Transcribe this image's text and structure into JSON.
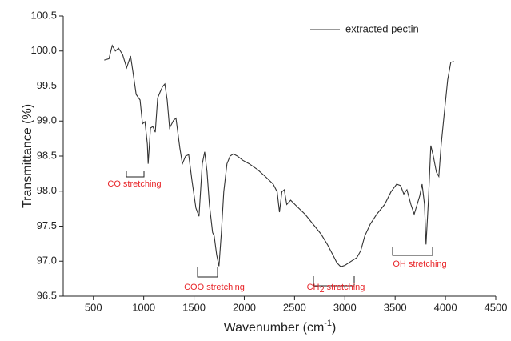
{
  "chart_data": {
    "type": "line",
    "x_label": {
      "text": "Wavenumber (cm",
      "sup": "-1",
      "end": ")"
    },
    "y_label": "Transmittance (%)",
    "xlim": [
      200,
      4500
    ],
    "ylim": [
      96.5,
      100.5
    ],
    "xticks": [
      500,
      1000,
      1500,
      2000,
      2500,
      3000,
      3500,
      4000,
      4500
    ],
    "yticks": [
      96.5,
      {
        "value": 97,
        "label": "97.0"
      },
      97.5,
      {
        "value": 98,
        "label": "98.0"
      },
      98.5,
      {
        "value": 99,
        "label": "99.0"
      },
      99.5,
      {
        "value": 100,
        "label": "100.0"
      },
      100.5
    ],
    "legend": "top-right",
    "x": [
      608,
      655,
      687,
      718,
      750,
      790,
      830,
      869,
      893,
      925,
      964,
      988,
      1012,
      1036,
      1044,
      1067,
      1091,
      1115,
      1139,
      1162,
      1186,
      1210,
      1233,
      1257,
      1297,
      1321,
      1360,
      1384,
      1416,
      1447,
      1479,
      1519,
      1550,
      1582,
      1606,
      1630,
      1653,
      1685,
      1701,
      1725,
      1748,
      1772,
      1796,
      1828,
      1859,
      1891,
      1931,
      1986,
      2049,
      2129,
      2208,
      2287,
      2327,
      2350,
      2374,
      2398,
      2422,
      2461,
      2525,
      2604,
      2683,
      2762,
      2826,
      2881,
      2920,
      2960,
      3000,
      3063,
      3119,
      3158,
      3198,
      3253,
      3317,
      3396,
      3459,
      3515,
      3554,
      3586,
      3617,
      3657,
      3689,
      3712,
      3744,
      3768,
      3792,
      3807,
      3831,
      3855,
      3879,
      3910,
      3934,
      3958,
      3990,
      4022,
      4053,
      4085
    ],
    "series": [
      {
        "name": "extracted pectin",
        "color": "#333333",
        "values": [
          99.87,
          99.89,
          100.08,
          100.0,
          100.04,
          99.95,
          99.76,
          99.93,
          99.7,
          99.38,
          99.3,
          98.96,
          98.99,
          98.67,
          98.39,
          98.9,
          98.92,
          98.84,
          99.33,
          99.41,
          99.49,
          99.53,
          99.3,
          98.9,
          99.01,
          99.04,
          98.61,
          98.39,
          98.5,
          98.52,
          98.16,
          97.76,
          97.64,
          98.39,
          98.56,
          98.27,
          97.81,
          97.41,
          97.36,
          97.09,
          96.93,
          97.41,
          97.99,
          98.39,
          98.5,
          98.53,
          98.5,
          98.44,
          98.39,
          98.31,
          98.21,
          98.1,
          97.99,
          97.7,
          97.99,
          98.02,
          97.81,
          97.87,
          97.78,
          97.67,
          97.53,
          97.39,
          97.24,
          97.09,
          96.98,
          96.92,
          96.94,
          97.0,
          97.05,
          97.15,
          97.36,
          97.53,
          97.67,
          97.81,
          97.99,
          98.1,
          98.08,
          97.96,
          98.02,
          97.81,
          97.67,
          97.78,
          97.93,
          98.1,
          97.81,
          97.24,
          97.87,
          98.65,
          98.5,
          98.27,
          98.21,
          98.67,
          99.13,
          99.59,
          99.84,
          99.85
        ]
      }
    ],
    "annotations": [
      "CO stretching",
      "COO stretching",
      {
        "text": "CH",
        "sub": "2",
        "end": " stretching"
      },
      "OH stretching"
    ]
  }
}
